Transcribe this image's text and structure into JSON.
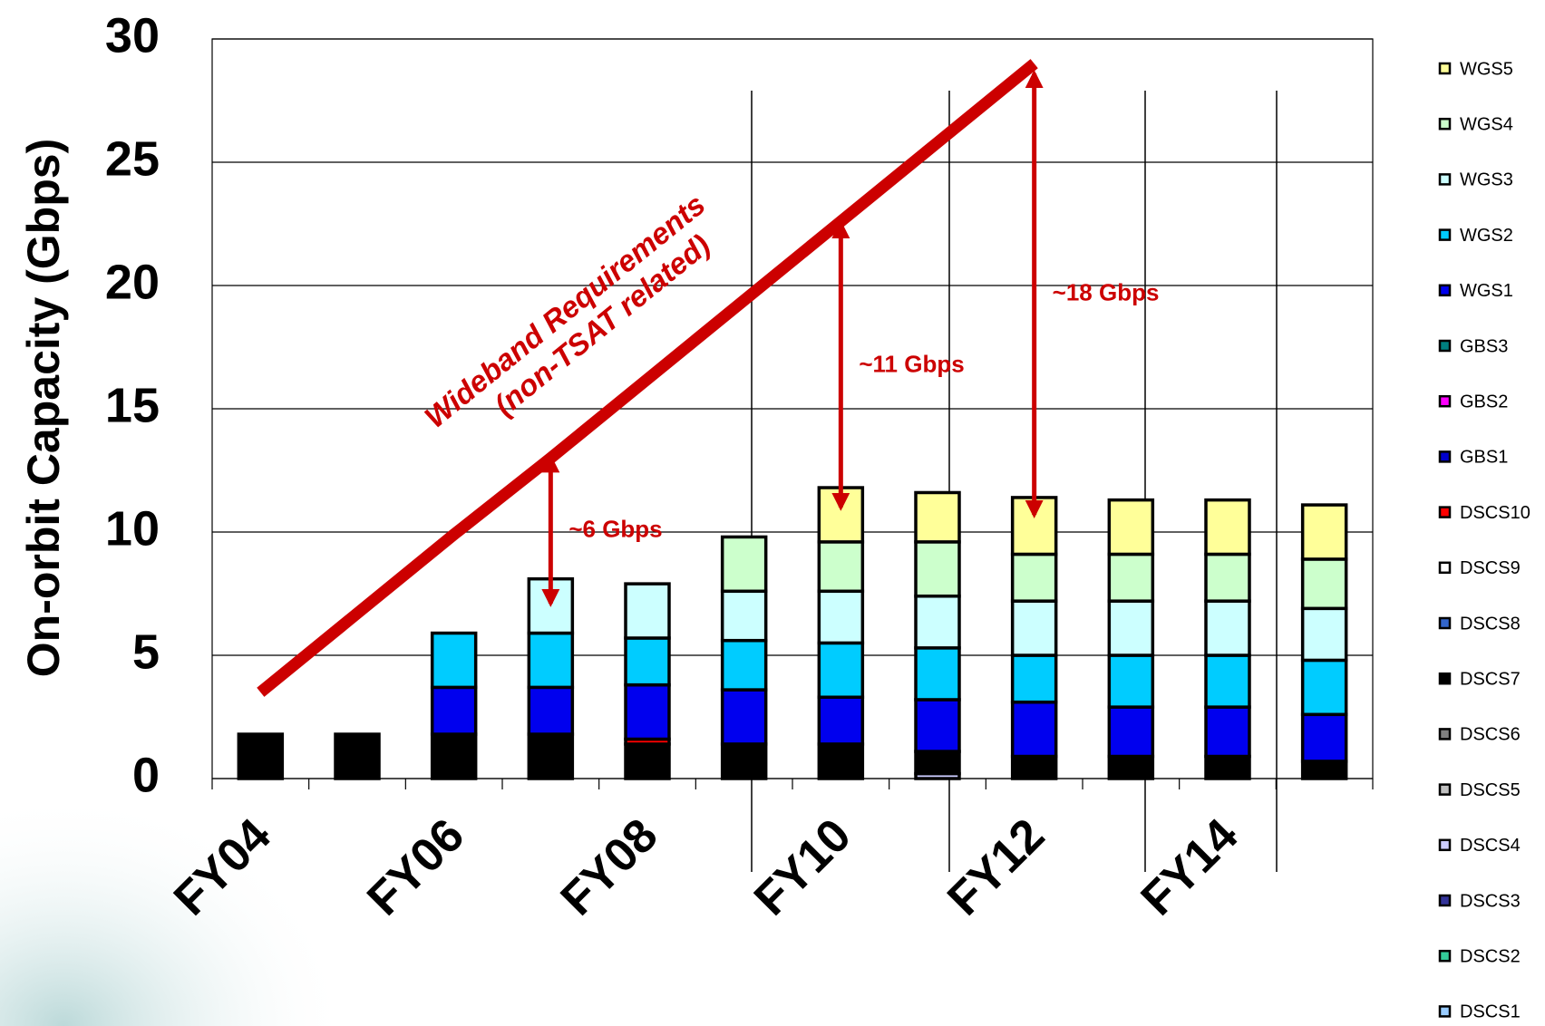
{
  "chart_data": {
    "type": "stacked_bar",
    "y_label": "On-orbit Capacity (Gbps)",
    "categories": [
      "FY04",
      null,
      "FY06",
      null,
      "FY08",
      null,
      "FY10",
      null,
      "FY12",
      null,
      "FY14",
      null
    ],
    "ylim": [
      0,
      30
    ],
    "yticks": [
      0,
      5,
      10,
      15,
      20,
      25,
      30
    ],
    "grid": true,
    "legend": "right",
    "series": [
      {
        "name": "WGS5",
        "color": "#ffff99",
        "values": [
          0,
          0,
          0,
          0,
          0,
          0,
          2.2,
          2.0,
          2.3,
          2.2,
          2.2,
          2.2
        ]
      },
      {
        "name": "WGS4",
        "color": "#ccffcc",
        "values": [
          0,
          0,
          0,
          0,
          0,
          2.2,
          2.0,
          2.2,
          1.9,
          1.9,
          1.9,
          2.0
        ]
      },
      {
        "name": "WGS3",
        "color": "#ccffff",
        "values": [
          0,
          0,
          0,
          2.2,
          2.2,
          2.0,
          2.1,
          2.1,
          2.2,
          2.2,
          2.2,
          2.1
        ]
      },
      {
        "name": "WGS2",
        "color": "#00ccff",
        "values": [
          0,
          0,
          2.2,
          2.2,
          1.9,
          2.0,
          2.2,
          2.1,
          1.9,
          2.1,
          2.1,
          2.2
        ]
      },
      {
        "name": "WGS1",
        "color": "#0000ee",
        "values": [
          0,
          0,
          1.9,
          1.9,
          2.2,
          2.2,
          1.9,
          2.1,
          2.2,
          2.0,
          2.0,
          1.9
        ]
      },
      {
        "name": "GBS3",
        "color": "#008080",
        "values": [
          0,
          0,
          0,
          0,
          0,
          0,
          0,
          0,
          0,
          0,
          0,
          0
        ]
      },
      {
        "name": "GBS2",
        "color": "#ff00ff",
        "values": [
          0,
          0,
          0,
          0,
          0,
          0,
          0,
          0,
          0,
          0,
          0,
          0
        ]
      },
      {
        "name": "GBS1",
        "color": "#0000cc",
        "values": [
          0,
          0,
          0,
          0,
          0,
          0,
          0,
          0,
          0,
          0,
          0,
          0
        ]
      },
      {
        "name": "DSCS10",
        "color": "#ff0000",
        "values": [
          0,
          0,
          0,
          0,
          0.2,
          0,
          0,
          0,
          0,
          0,
          0,
          0
        ]
      },
      {
        "name": "DSCS9",
        "color": "#ffffff",
        "values": [
          0,
          0,
          0,
          0,
          0,
          0,
          0,
          0,
          0,
          0,
          0,
          0
        ]
      },
      {
        "name": "DSCS8",
        "color": "#3366cc",
        "values": [
          0,
          0,
          0,
          0,
          0,
          0,
          0,
          0,
          0,
          0,
          0,
          0
        ]
      },
      {
        "name": "DSCS7",
        "color": "#000000",
        "values": [
          1.8,
          1.8,
          1.8,
          1.8,
          1.4,
          1.4,
          1.4,
          0.9,
          0.9,
          0.9,
          0.9,
          0.7
        ]
      },
      {
        "name": "DSCS6",
        "color": "#808080",
        "values": [
          0,
          0,
          0,
          0,
          0,
          0,
          0,
          0,
          0,
          0,
          0,
          0
        ]
      },
      {
        "name": "DSCS5",
        "color": "#c0c0c0",
        "values": [
          0,
          0,
          0,
          0,
          0,
          0,
          0,
          0,
          0,
          0,
          0,
          0
        ]
      },
      {
        "name": "DSCS4",
        "color": "#ccccff",
        "values": [
          0,
          0,
          0,
          0,
          0,
          0,
          0,
          0.2,
          0,
          0,
          0,
          0
        ]
      },
      {
        "name": "DSCS3",
        "color": "#333399",
        "values": [
          0,
          0,
          0,
          0,
          0,
          0,
          0,
          0,
          0,
          0,
          0,
          0
        ]
      },
      {
        "name": "DSCS2",
        "color": "#33cc99",
        "values": [
          0,
          0,
          0,
          0,
          0,
          0,
          0,
          0,
          0,
          0,
          0,
          0
        ]
      },
      {
        "name": "DSCS1",
        "color": "#99ccff",
        "values": [
          0,
          0,
          0,
          0,
          0,
          0,
          0,
          0,
          0,
          0,
          0,
          0
        ]
      }
    ],
    "requirement_line": {
      "label": [
        "Wideband Requirements",
        "(non-TSAT related)"
      ],
      "color": "#cc0000",
      "values": [
        3.5,
        6.7,
        9.9,
        13.0,
        16.2,
        19.4,
        22.6,
        25.8,
        29.0,
        null,
        null,
        null
      ]
    },
    "arrows": [
      {
        "text": "~6 Gbps",
        "from": 13.0,
        "to": 7.1
      },
      {
        "text": "~11 Gbps",
        "from": 22.5,
        "to": 11.0
      },
      {
        "text": "~18 Gbps",
        "from": 28.6,
        "to": 10.7
      }
    ]
  }
}
